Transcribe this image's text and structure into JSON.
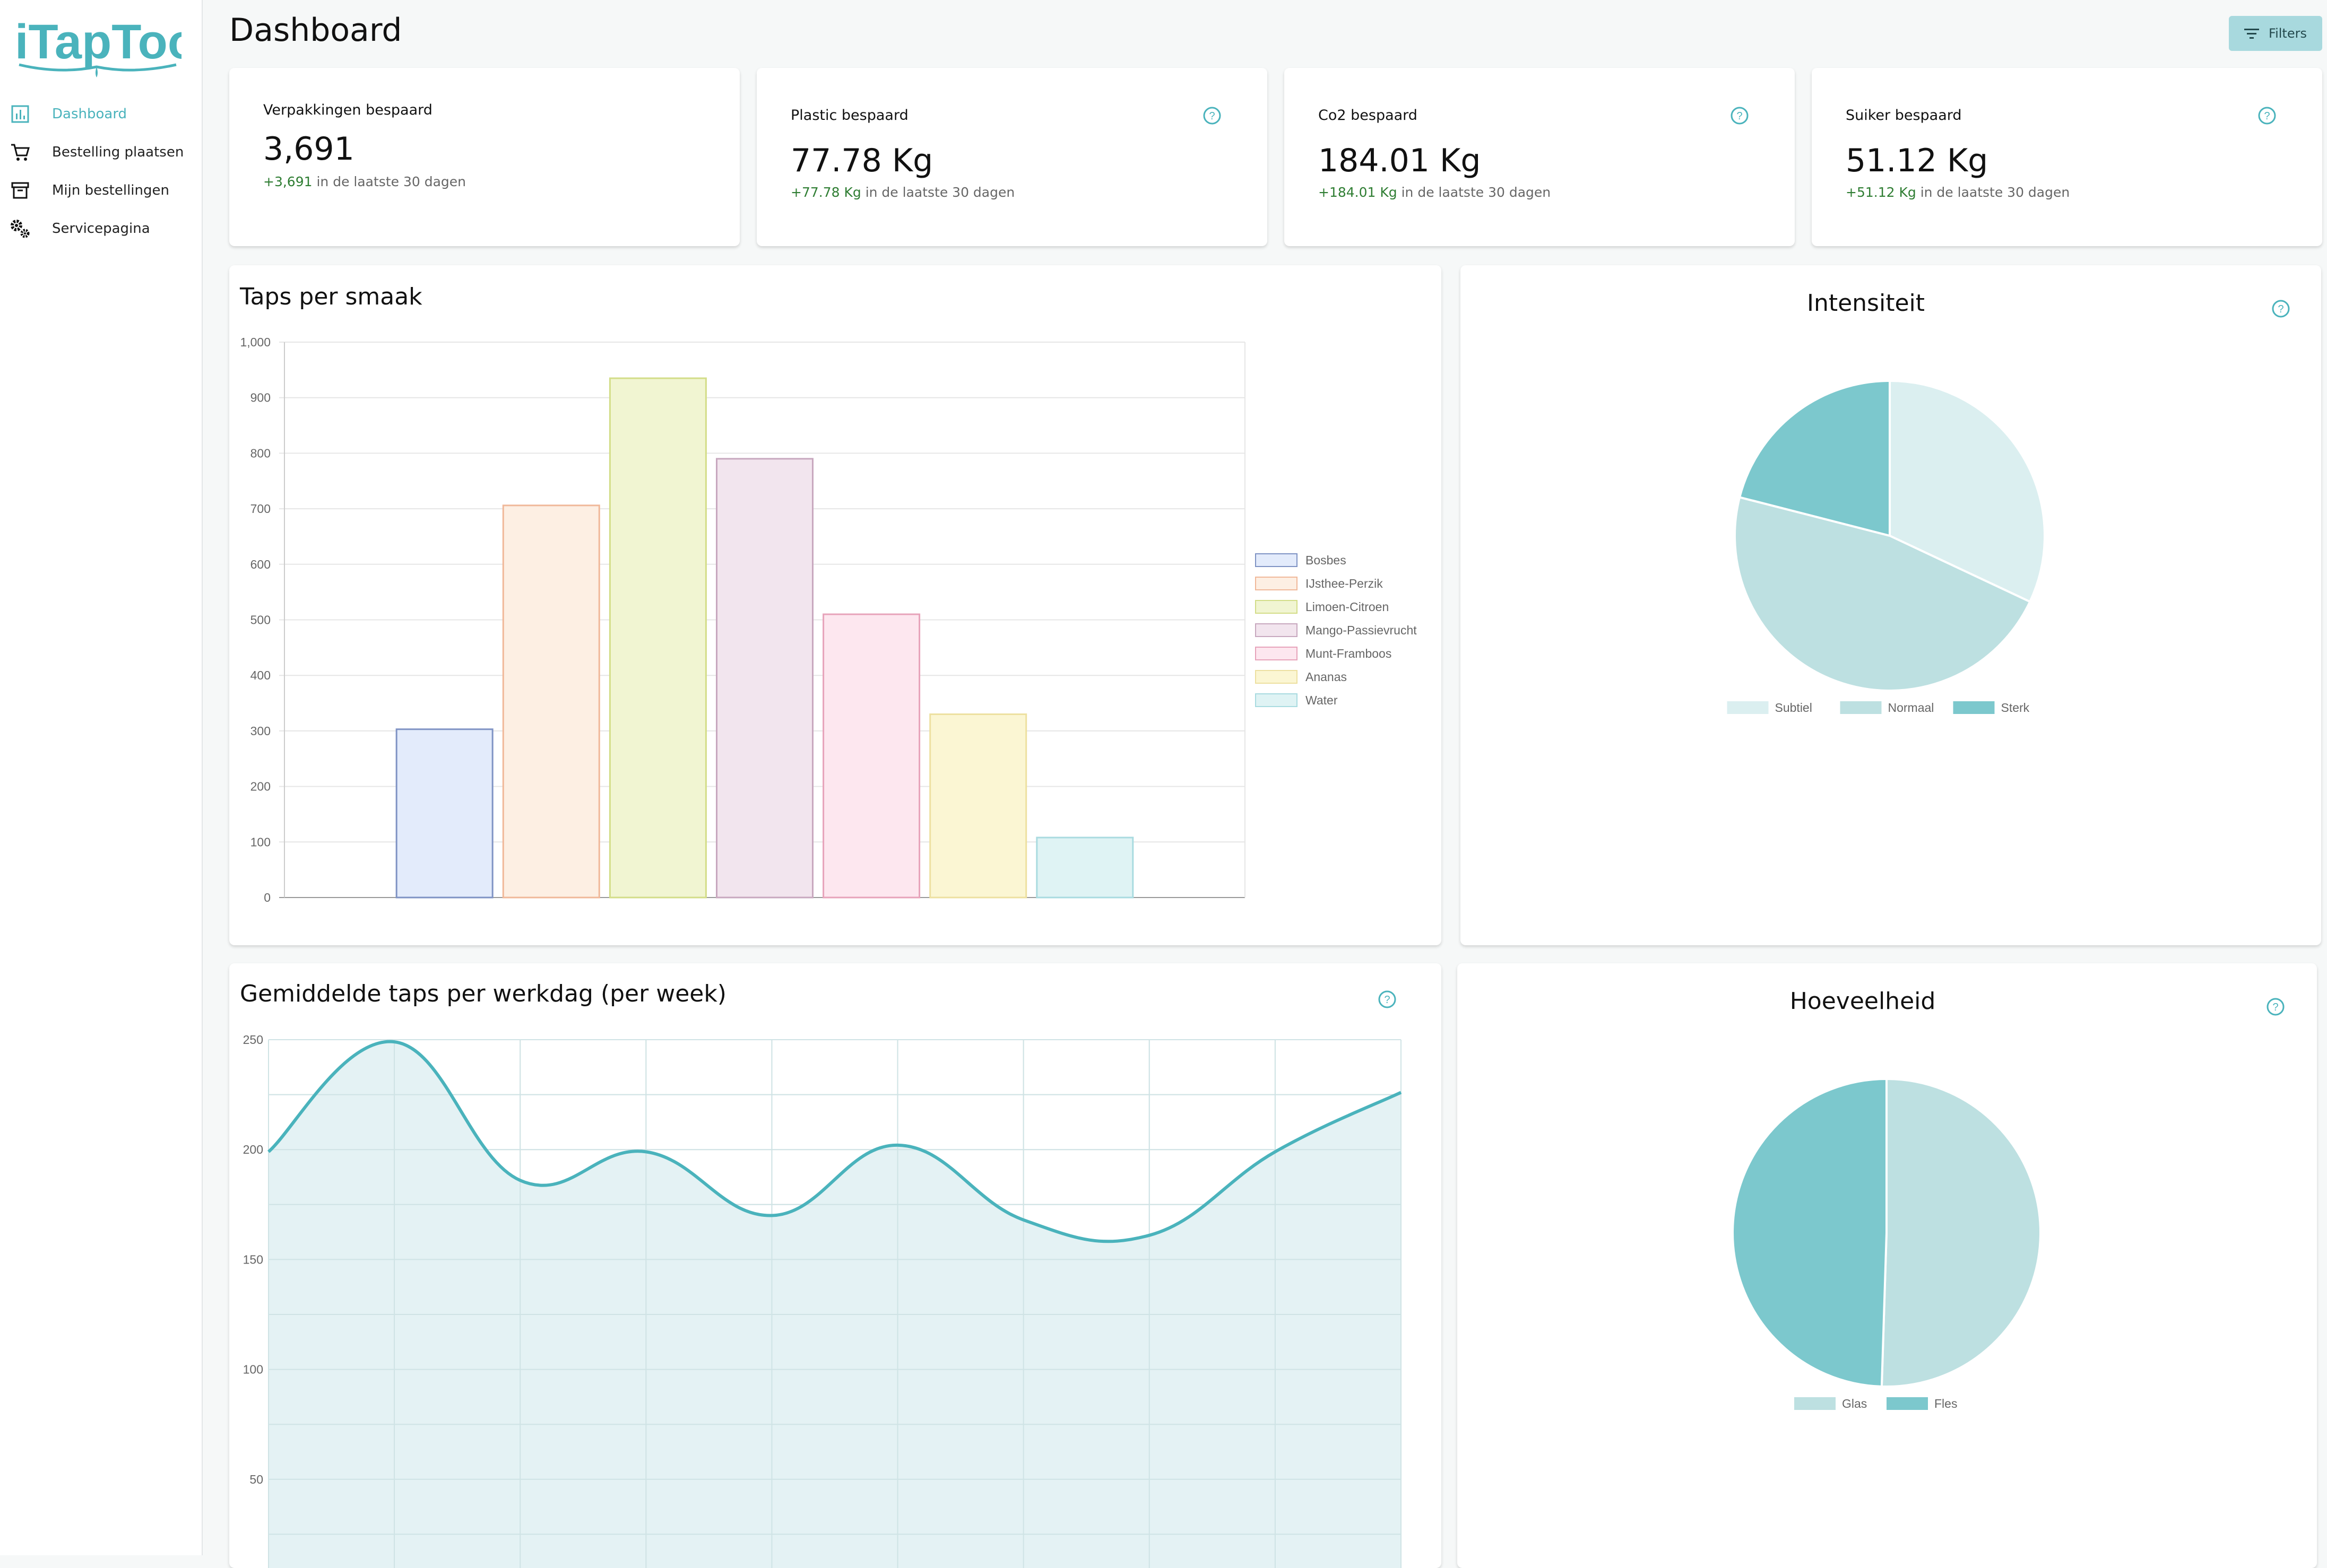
{
  "app": {
    "name": "iTapToo"
  },
  "sidebar": {
    "items": [
      {
        "label": "Dashboard",
        "icon": "bar-chart-icon"
      },
      {
        "label": "Bestelling plaatsen",
        "icon": "cart-icon"
      },
      {
        "label": "Mijn bestellingen",
        "icon": "archive-icon"
      },
      {
        "label": "Servicepagina",
        "icon": "gears-icon"
      }
    ]
  },
  "header": {
    "title": "Dashboard",
    "filters_label": "Filters"
  },
  "stats": [
    {
      "label": "Verpakkingen bespaard",
      "value": "3,691",
      "delta": "+3,691",
      "suffix": "in de laatste 30 dagen"
    },
    {
      "label": "Plastic bespaard",
      "value": "77.78 Kg",
      "delta": "+77.78 Kg",
      "suffix": "in de laatste 30 dagen"
    },
    {
      "label": "Co2 bespaard",
      "value": "184.01 Kg",
      "delta": "+184.01 Kg",
      "suffix": "in de laatste 30 dagen"
    },
    {
      "label": "Suiker bespaard",
      "value": "51.12 Kg",
      "delta": "+51.12 Kg",
      "suffix": "in de laatste 30 dagen"
    }
  ],
  "colors": {
    "accent": "#4ab3bc",
    "positive": "#2e7d32"
  },
  "chart_data": [
    {
      "type": "bar",
      "title": "Taps per smaak",
      "categories": [
        "Bosbes",
        "IJsthee-Perzik",
        "Limoen-Citroen",
        "Mango-Passievrucht",
        "Munt-Framboos",
        "Ananas",
        "Water"
      ],
      "values": [
        303,
        706,
        935,
        790,
        510,
        330,
        108
      ],
      "colors": [
        "#e3ebfb",
        "#fdefe3",
        "#f1f5d2",
        "#f2e5ee",
        "#fde7ef",
        "#fbf6d3",
        "#dff3f4"
      ],
      "borders": [
        "#7f93c4",
        "#f0b899",
        "#d3dd88",
        "#c8a8bf",
        "#e7a3ba",
        "#ede0a0",
        "#a9dbe0"
      ],
      "ylim": [
        0,
        1000
      ],
      "yticks": [
        0,
        100,
        200,
        300,
        400,
        500,
        600,
        700,
        800,
        900,
        1000
      ],
      "ytick_labels": [
        "0",
        "100",
        "200",
        "300",
        "400",
        "500",
        "600",
        "700",
        "800",
        "900",
        "1,000"
      ],
      "legend": "right"
    },
    {
      "type": "pie",
      "title": "Intensiteit",
      "labels": [
        "Subtiel",
        "Normaal",
        "Sterk"
      ],
      "values": [
        32,
        47,
        21
      ],
      "colors": [
        "#dbeff0",
        "#bde0e1",
        "#7cc8cd"
      ],
      "legend": "bottom"
    },
    {
      "type": "area",
      "title": "Gemiddelde taps per werkdag (per week)",
      "x": [
        0,
        1,
        2,
        3,
        4,
        5,
        6,
        7,
        8,
        9
      ],
      "values": [
        199,
        249,
        186,
        199,
        170,
        202,
        168,
        161,
        199,
        226
      ],
      "ylim": [
        0,
        250
      ],
      "yticks": [
        50,
        100,
        150,
        200,
        250
      ],
      "color": "#4ab3bc",
      "fill": "#dff0f2"
    },
    {
      "type": "pie",
      "title": "Hoeveelheid",
      "labels": [
        "Glas",
        "Fles"
      ],
      "values": [
        50.5,
        49.5
      ],
      "colors": [
        "#bde0e1",
        "#7cc8cd"
      ],
      "legend": "bottom"
    }
  ]
}
